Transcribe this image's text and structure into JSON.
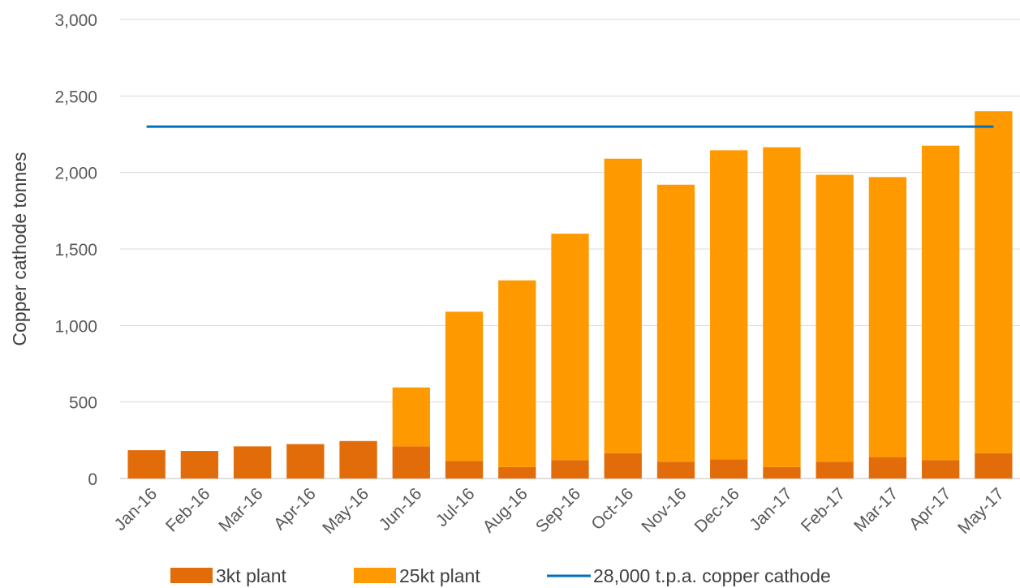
{
  "chart_data": {
    "type": "bar",
    "stacked": true,
    "title": "",
    "xlabel": "",
    "ylabel": "Copper cathode tonnes",
    "ylim": [
      0,
      3000
    ],
    "yticks": [
      0,
      500,
      1000,
      1500,
      2000,
      2500,
      3000
    ],
    "ytick_labels": [
      "0",
      "500",
      "1,000",
      "1,500",
      "2,000",
      "2,500",
      "3,000"
    ],
    "grid": true,
    "legend_position": "bottom",
    "categories": [
      "Jan-16",
      "Feb-16",
      "Mar-16",
      "Apr-16",
      "May-16",
      "Jun-16",
      "Jul-16",
      "Aug-16",
      "Sep-16",
      "Oct-16",
      "Nov-16",
      "Dec-16",
      "Jan-17",
      "Feb-17",
      "Mar-17",
      "Apr-17",
      "May-17"
    ],
    "series": [
      {
        "name": "3kt plant",
        "kind": "bar",
        "color": "#E36C0A",
        "values": [
          185,
          180,
          210,
          225,
          245,
          210,
          115,
          75,
          120,
          165,
          110,
          125,
          75,
          110,
          140,
          120,
          165
        ]
      },
      {
        "name": "25kt plant",
        "kind": "bar",
        "color": "#FF9900",
        "values": [
          0,
          0,
          0,
          0,
          0,
          385,
          975,
          1220,
          1480,
          1925,
          1810,
          2020,
          2090,
          1875,
          1830,
          2055,
          2235
        ]
      },
      {
        "name": "28,000 t.p.a. copper cathode",
        "kind": "line",
        "color": "#0070C0",
        "values": [
          2300,
          2300,
          2300,
          2300,
          2300,
          2300,
          2300,
          2300,
          2300,
          2300,
          2300,
          2300,
          2300,
          2300,
          2300,
          2300,
          2300
        ]
      }
    ]
  }
}
